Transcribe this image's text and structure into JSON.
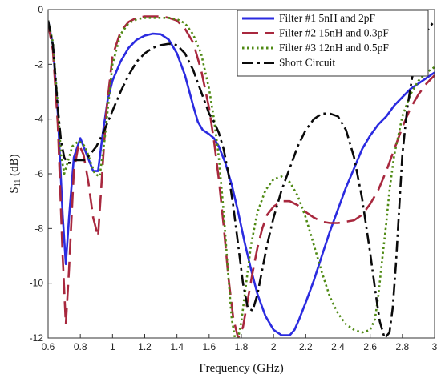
{
  "chart_data": {
    "type": "line",
    "title": "",
    "xlabel": "Frequency (GHz)",
    "ylabel": "S",
    "ylabel_sub": "11",
    "ylabel_unit": " (dB)",
    "xlim": [
      0.6,
      3.0
    ],
    "ylim": [
      -12,
      0
    ],
    "xticks": [
      0.6,
      0.8,
      1.0,
      1.2,
      1.4,
      1.6,
      1.8,
      2.0,
      2.2,
      2.4,
      2.6,
      2.8,
      3.0
    ],
    "xtick_labels": [
      "0.6",
      "0.8",
      "1",
      "1.2",
      "1.4",
      "1.6",
      "1.8",
      "2",
      "2.2",
      "2.4",
      "2.6",
      "2.8",
      "3"
    ],
    "yticks": [
      0,
      -2,
      -4,
      -6,
      -8,
      -10,
      -12
    ],
    "ytick_labels": [
      "0",
      "-2",
      "-4",
      "-6",
      "-8",
      "-10",
      "-12"
    ],
    "grid": false,
    "legend_position": "top-right",
    "series": [
      {
        "name": "Filter #1 5nH and 2pF",
        "color": "#2b2be0",
        "dash": "solid",
        "x": [
          0.6,
          0.63,
          0.66,
          0.69,
          0.71,
          0.73,
          0.76,
          0.8,
          0.84,
          0.88,
          0.91,
          0.94,
          0.97,
          1.0,
          1.05,
          1.1,
          1.15,
          1.2,
          1.25,
          1.3,
          1.35,
          1.4,
          1.45,
          1.5,
          1.53,
          1.56,
          1.6,
          1.63,
          1.66,
          1.7,
          1.74,
          1.78,
          1.82,
          1.86,
          1.9,
          1.95,
          2.0,
          2.05,
          2.1,
          2.13,
          2.16,
          2.2,
          2.25,
          2.3,
          2.35,
          2.4,
          2.45,
          2.5,
          2.55,
          2.6,
          2.65,
          2.7,
          2.75,
          2.8,
          2.85,
          2.9,
          2.95,
          3.0
        ],
        "y": [
          -0.4,
          -1.3,
          -3.8,
          -7.5,
          -9.3,
          -7.6,
          -5.4,
          -4.7,
          -5.3,
          -5.9,
          -5.9,
          -4.5,
          -3.3,
          -2.6,
          -1.9,
          -1.4,
          -1.1,
          -0.95,
          -0.88,
          -0.9,
          -1.1,
          -1.6,
          -2.4,
          -3.5,
          -4.1,
          -4.4,
          -4.55,
          -4.7,
          -5.0,
          -5.6,
          -6.4,
          -7.4,
          -8.5,
          -9.5,
          -10.4,
          -11.2,
          -11.7,
          -11.9,
          -11.9,
          -11.7,
          -11.3,
          -10.7,
          -9.9,
          -9.0,
          -8.1,
          -7.3,
          -6.5,
          -5.8,
          -5.1,
          -4.6,
          -4.2,
          -3.9,
          -3.5,
          -3.2,
          -2.9,
          -2.7,
          -2.5,
          -2.3
        ]
      },
      {
        "name": "Filter #2 15nH and 0.3pF",
        "color": "#a8283e",
        "dash": "longdash",
        "x": [
          0.6,
          0.63,
          0.66,
          0.69,
          0.71,
          0.73,
          0.76,
          0.79,
          0.82,
          0.85,
          0.88,
          0.91,
          0.93,
          0.96,
          1.0,
          1.05,
          1.1,
          1.15,
          1.2,
          1.25,
          1.3,
          1.35,
          1.4,
          1.45,
          1.5,
          1.55,
          1.6,
          1.63,
          1.66,
          1.69,
          1.72,
          1.75,
          1.78,
          1.81,
          1.84,
          1.87,
          1.9,
          1.93,
          1.96,
          2.0,
          2.05,
          2.1,
          2.15,
          2.2,
          2.25,
          2.3,
          2.35,
          2.4,
          2.45,
          2.5,
          2.55,
          2.6,
          2.65,
          2.7,
          2.75,
          2.8,
          2.85,
          2.9,
          2.95,
          3.0
        ],
        "y": [
          -0.5,
          -1.5,
          -4.2,
          -9.0,
          -11.5,
          -9.5,
          -5.9,
          -4.9,
          -5.3,
          -6.3,
          -7.6,
          -8.3,
          -6.5,
          -3.8,
          -1.7,
          -0.8,
          -0.45,
          -0.3,
          -0.25,
          -0.25,
          -0.25,
          -0.3,
          -0.4,
          -0.7,
          -1.2,
          -2.2,
          -3.6,
          -4.8,
          -6.2,
          -7.9,
          -9.8,
          -11.3,
          -12.0,
          -11.6,
          -10.6,
          -9.6,
          -8.7,
          -8.0,
          -7.5,
          -7.2,
          -7.0,
          -7.0,
          -7.15,
          -7.4,
          -7.6,
          -7.75,
          -7.8,
          -7.8,
          -7.75,
          -7.7,
          -7.5,
          -7.1,
          -6.6,
          -5.9,
          -5.1,
          -4.3,
          -3.6,
          -3.1,
          -2.7,
          -2.4
        ]
      },
      {
        "name": "Filter #3 12nH and 0.5pF",
        "color": "#4f8a14",
        "dash": "dotted",
        "x": [
          0.6,
          0.63,
          0.66,
          0.68,
          0.7,
          0.72,
          0.75,
          0.79,
          0.83,
          0.86,
          0.89,
          0.92,
          0.95,
          1.0,
          1.05,
          1.1,
          1.15,
          1.2,
          1.25,
          1.3,
          1.35,
          1.4,
          1.45,
          1.5,
          1.55,
          1.6,
          1.63,
          1.66,
          1.69,
          1.72,
          1.74,
          1.76,
          1.78,
          1.8,
          1.83,
          1.86,
          1.9,
          1.95,
          2.0,
          2.05,
          2.1,
          2.15,
          2.2,
          2.25,
          2.3,
          2.35,
          2.4,
          2.45,
          2.5,
          2.55,
          2.6,
          2.63,
          2.65,
          2.67,
          2.7,
          2.72,
          2.75,
          2.8,
          2.85,
          2.9,
          2.95,
          3.0
        ],
        "y": [
          -0.4,
          -1.2,
          -3.5,
          -5.3,
          -6.0,
          -5.6,
          -5.0,
          -4.8,
          -5.0,
          -5.5,
          -6.0,
          -6.1,
          -4.8,
          -2.0,
          -0.9,
          -0.5,
          -0.35,
          -0.3,
          -0.3,
          -0.3,
          -0.3,
          -0.35,
          -0.5,
          -0.9,
          -1.6,
          -2.9,
          -4.0,
          -5.4,
          -7.4,
          -9.8,
          -11.3,
          -12.0,
          -12.0,
          -11.4,
          -10.0,
          -8.6,
          -7.4,
          -6.6,
          -6.2,
          -6.1,
          -6.3,
          -6.8,
          -7.6,
          -8.6,
          -9.6,
          -10.5,
          -11.1,
          -11.5,
          -11.7,
          -11.8,
          -11.7,
          -11.3,
          -10.5,
          -9.4,
          -7.8,
          -6.6,
          -5.3,
          -3.9,
          -3.1,
          -2.6,
          -2.3,
          -2.1
        ]
      },
      {
        "name": "Short Circuit",
        "color": "#0a0a0a",
        "dash": "dashdot",
        "x": [
          0.6,
          0.63,
          0.66,
          0.68,
          0.7,
          0.72,
          0.74,
          0.77,
          0.8,
          0.83,
          0.86,
          0.9,
          0.95,
          1.0,
          1.05,
          1.1,
          1.15,
          1.2,
          1.25,
          1.3,
          1.35,
          1.4,
          1.45,
          1.5,
          1.55,
          1.6,
          1.63,
          1.66,
          1.69,
          1.72,
          1.75,
          1.78,
          1.81,
          1.84,
          1.87,
          1.9,
          1.93,
          1.96,
          2.0,
          2.05,
          2.1,
          2.15,
          2.2,
          2.25,
          2.3,
          2.35,
          2.4,
          2.45,
          2.5,
          2.55,
          2.6,
          2.63,
          2.66,
          2.69,
          2.72,
          2.74,
          2.76,
          2.78,
          2.8,
          2.83,
          2.86,
          2.9,
          2.95,
          3.0
        ],
        "y": [
          -0.4,
          -1.3,
          -3.6,
          -4.8,
          -5.4,
          -5.6,
          -5.6,
          -5.5,
          -5.5,
          -5.5,
          -5.3,
          -5.0,
          -4.4,
          -3.7,
          -3.0,
          -2.4,
          -1.9,
          -1.6,
          -1.4,
          -1.3,
          -1.25,
          -1.3,
          -1.6,
          -2.2,
          -3.0,
          -3.8,
          -4.1,
          -4.5,
          -5.1,
          -6.0,
          -7.2,
          -8.6,
          -10.0,
          -10.9,
          -11.0,
          -10.4,
          -9.5,
          -8.6,
          -7.6,
          -6.6,
          -5.8,
          -5.0,
          -4.4,
          -4.0,
          -3.8,
          -3.8,
          -3.9,
          -4.4,
          -5.4,
          -6.9,
          -8.9,
          -10.2,
          -11.4,
          -12.0,
          -11.8,
          -10.9,
          -9.3,
          -7.3,
          -5.3,
          -3.6,
          -2.5,
          -1.5,
          -0.8,
          -0.4
        ]
      }
    ]
  }
}
